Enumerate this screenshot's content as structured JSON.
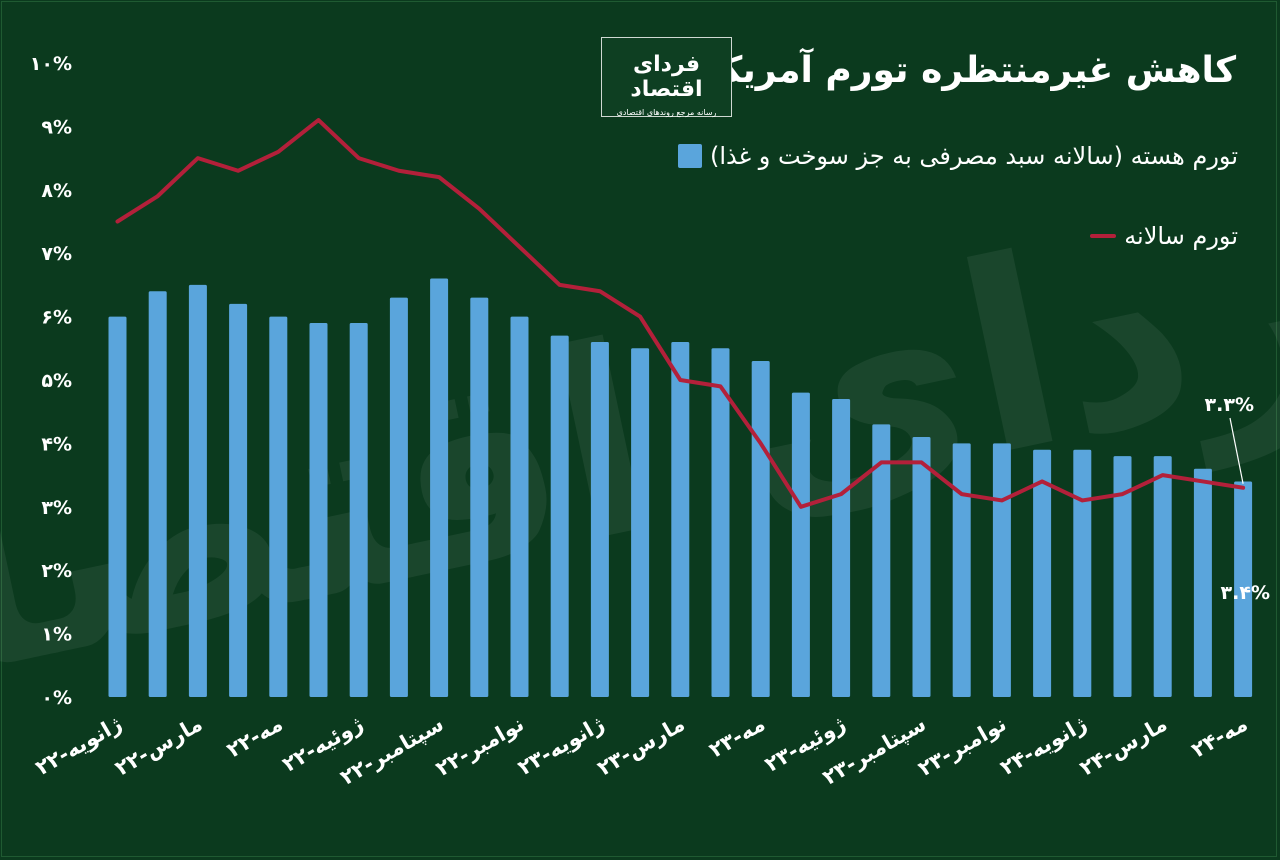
{
  "title": "کاهش غیرمنتظره تورم آمریکا",
  "logo": {
    "name": "فردای اقتصاد",
    "tagline": "رسانه مرجع روندهای اقتصادی"
  },
  "colors": {
    "background": "#0b3a1e",
    "bar": "#5aa5dc",
    "line": "#b3203a",
    "text": "#ffffff"
  },
  "chart_data": {
    "type": "bar",
    "title": "کاهش غیرمنتظره تورم آمریکا",
    "ylim": [
      0,
      10
    ],
    "y_ticks": [
      "۰%",
      "۱%",
      "۲%",
      "۳%",
      "۴%",
      "۵%",
      "۶%",
      "۷%",
      "۸%",
      "۹%",
      "۱۰%"
    ],
    "x_tick_labels": [
      "ژانویه-۲۲",
      "مارس-۲۲",
      "مه-۲۲",
      "ژوئیه-۲۲",
      "سپتامبر-۲۲",
      "نوامبر-۲۲",
      "ژانویه-۲۳",
      "مارس-۲۳",
      "مه-۲۳",
      "ژوئیه-۲۳",
      "سپتامبر-۲۳",
      "نوامبر-۲۳",
      "ژانویه-۲۴",
      "مارس-۲۴",
      "مه-۲۴"
    ],
    "months": 29,
    "series": [
      {
        "name": "تورم هسته (سالانه سبد مصرفی به جز سوخت و غذا)",
        "type": "bar",
        "values": [
          6.0,
          6.4,
          6.5,
          6.2,
          6.0,
          5.9,
          5.9,
          6.3,
          6.6,
          6.3,
          6.0,
          5.7,
          5.6,
          5.5,
          5.6,
          5.5,
          5.3,
          4.8,
          4.7,
          4.3,
          4.1,
          4.0,
          4.0,
          3.9,
          3.9,
          3.8,
          3.8,
          3.6,
          3.4
        ]
      },
      {
        "name": "تورم سالانه",
        "type": "line",
        "values": [
          7.5,
          7.9,
          8.5,
          8.3,
          8.6,
          9.1,
          8.5,
          8.3,
          8.2,
          7.7,
          7.1,
          6.5,
          6.4,
          6.0,
          5.0,
          4.9,
          4.0,
          3.0,
          3.2,
          3.7,
          3.7,
          3.2,
          3.1,
          3.4,
          3.1,
          3.2,
          3.5,
          3.4,
          3.3
        ]
      }
    ],
    "annotations": {
      "last_line_label": "۳.۳%",
      "last_bar_label": "۳.۴%"
    }
  }
}
